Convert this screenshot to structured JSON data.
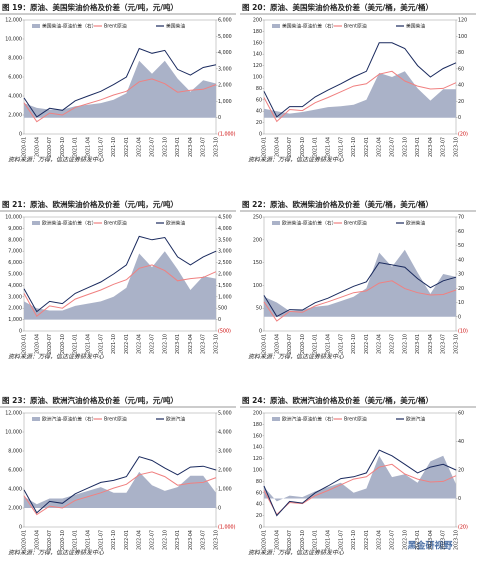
{
  "watermark": "黑金研视野",
  "chart_data": [
    {
      "type": "line",
      "title": "图 19：原油、美国柴油价格及价差（元/吨，元/吨）",
      "source": "资料来源：万得，信达证券研发中心",
      "categories": [
        "2020-01",
        "2020-04",
        "2020-07",
        "2020-10",
        "2021-01",
        "2021-04",
        "2021-07",
        "2021-10",
        "2022-01",
        "2022-04",
        "2022-07",
        "2022-10",
        "2023-01",
        "2023-04",
        "2023-07",
        "2023-10"
      ],
      "series": [
        {
          "name": "美国柴油-原油价差（右）",
          "color": "#aab2c8",
          "axis": "y2",
          "values": [
            900,
            600,
            500,
            500,
            700,
            800,
            900,
            1100,
            1500,
            3500,
            2700,
            3500,
            2400,
            1600,
            2300,
            2100
          ]
        },
        {
          "name": "Brent原油",
          "color": "#f08080",
          "values": [
            3300,
            1300,
            2200,
            2000,
            2800,
            3200,
            3600,
            4100,
            4500,
            5500,
            5800,
            5300,
            4400,
            4600,
            4700,
            5200
          ]
        },
        {
          "name": "美国柴油",
          "color": "#1a2a5e",
          "values": [
            3800,
            1800,
            2700,
            2500,
            3500,
            4000,
            4500,
            5200,
            6000,
            9000,
            8500,
            8800,
            6800,
            6200,
            7000,
            7300
          ]
        }
      ],
      "ylim": [
        0,
        12000
      ],
      "yticks": [
        0,
        {
          "value": 2000,
          "label": "2,000"
        },
        {
          "value": 4000,
          "label": "4,000"
        },
        {
          "value": 6000,
          "label": "6,000"
        },
        {
          "value": 8000,
          "label": "8,000"
        },
        {
          "value": 10000,
          "label": "10,000"
        },
        {
          "value": 12000,
          "label": "12,000"
        }
      ],
      "y2lim": [
        -1000,
        6000
      ],
      "y2ticks": [
        {
          "value": -1000,
          "label": "(1,000)"
        },
        0,
        {
          "value": 1000,
          "label": "1,000"
        },
        {
          "value": 2000,
          "label": "2,000"
        },
        {
          "value": 3000,
          "label": "3,000"
        },
        {
          "value": 4000,
          "label": "4,000"
        },
        {
          "value": 5000,
          "label": "5,000"
        },
        {
          "value": 6000,
          "label": "6,000"
        }
      ]
    },
    {
      "type": "line",
      "title": "图 20：原油、美国柴油价格及价差（美元/桶，美元/桶）",
      "source": "资料来源：万得，信达证券研发中心",
      "categories": [
        "2020-01",
        "2020-04",
        "2020-07",
        "2020-10",
        "2021-01",
        "2021-04",
        "2021-07",
        "2021-10",
        "2022-01",
        "2022-04",
        "2022-07",
        "2022-10",
        "2023-01",
        "2023-04",
        "2023-07",
        "2023-10"
      ],
      "series": [
        {
          "name": "美国柴油-原油价差（右）",
          "color": "#aab2c8",
          "axis": "y2",
          "values": [
            11,
            8,
            5,
            7,
            10,
            13,
            14,
            16,
            22,
            55,
            50,
            57,
            36,
            21,
            35,
            35
          ]
        },
        {
          "name": "Brent原油",
          "color": "#f08080",
          "values": [
            64,
            22,
            43,
            41,
            55,
            64,
            74,
            84,
            88,
            105,
            110,
            93,
            84,
            79,
            80,
            90
          ]
        },
        {
          "name": "美国柴油",
          "color": "#1a2a5e",
          "values": [
            75,
            30,
            48,
            48,
            65,
            77,
            88,
            100,
            110,
            160,
            160,
            150,
            120,
            100,
            115,
            125
          ]
        }
      ],
      "ylim": [
        0,
        200
      ],
      "yticks": [
        0,
        20,
        40,
        60,
        80,
        100,
        120,
        140,
        160,
        180,
        200
      ],
      "y2lim": [
        -20,
        120
      ],
      "y2ticks": [
        {
          "value": -20,
          "label": "(20)"
        },
        0,
        20,
        40,
        60,
        80,
        100,
        120
      ]
    },
    {
      "type": "line",
      "title": "图 21：原油、欧洲柴油价格及价差（元/吨，元/吨）",
      "source": "资料来源：万得，信达证券研发中心",
      "categories": [
        "2020-01",
        "2020-04",
        "2020-07",
        "2020-10",
        "2021-01",
        "2021-04",
        "2021-07",
        "2021-10",
        "2022-01",
        "2022-04",
        "2022-07",
        "2022-10",
        "2023-01",
        "2023-04",
        "2023-07",
        "2023-10"
      ],
      "series": [
        {
          "name": "欧洲柴油-原油价差（右）",
          "color": "#aab2c8",
          "axis": "y2",
          "values": [
            800,
            500,
            400,
            400,
            600,
            700,
            800,
            1000,
            1400,
            2900,
            2300,
            3000,
            2200,
            1300,
            1900,
            1800
          ]
        },
        {
          "name": "Brent原油",
          "color": "#f08080",
          "values": [
            3300,
            1300,
            2200,
            2000,
            2800,
            3200,
            3600,
            4100,
            4500,
            5500,
            5800,
            5300,
            4400,
            4600,
            4700,
            5200
          ]
        },
        {
          "name": "欧洲柴油",
          "color": "#1a2a5e",
          "values": [
            3700,
            1700,
            2600,
            2400,
            3300,
            3800,
            4300,
            5000,
            5800,
            8300,
            8000,
            8200,
            6500,
            5800,
            6500,
            7000
          ]
        }
      ],
      "ylim": [
        0,
        10000
      ],
      "yticks": [
        0,
        {
          "value": 1000,
          "label": "1,000"
        },
        {
          "value": 2000,
          "label": "2,000"
        },
        {
          "value": 3000,
          "label": "3,000"
        },
        {
          "value": 4000,
          "label": "4,000"
        },
        {
          "value": 5000,
          "label": "5,000"
        },
        {
          "value": 6000,
          "label": "6,000"
        },
        {
          "value": 7000,
          "label": "7,000"
        },
        {
          "value": 8000,
          "label": "8,000"
        },
        {
          "value": 9000,
          "label": "9,000"
        },
        {
          "value": 10000,
          "label": "10,000"
        }
      ],
      "y2lim": [
        -500,
        4500
      ],
      "y2ticks": [
        {
          "value": -500,
          "label": "(500)"
        },
        0,
        500,
        {
          "value": 1000,
          "label": "1,000"
        },
        {
          "value": 1500,
          "label": "1,500"
        },
        {
          "value": 2000,
          "label": "2,000"
        },
        {
          "value": 2500,
          "label": "2,500"
        },
        {
          "value": 3000,
          "label": "3,000"
        },
        {
          "value": 3500,
          "label": "3,500"
        },
        {
          "value": 4000,
          "label": "4,000"
        },
        {
          "value": 4500,
          "label": "4,500"
        }
      ]
    },
    {
      "type": "line",
      "title": "图 22：原油、欧洲柴油价格及价差（美元/桶，美元/桶）",
      "source": "资料来源：万得，信达证券研发中心",
      "categories": [
        "2020-01",
        "2020-04",
        "2020-07",
        "2020-10",
        "2021-01",
        "2021-04",
        "2021-07",
        "2021-10",
        "2022-01",
        "2022-04",
        "2022-07",
        "2022-10",
        "2023-01",
        "2023-04",
        "2023-07",
        "2023-10"
      ],
      "series": [
        {
          "name": "欧洲柴油-原油价差（右）",
          "color": "#aab2c8",
          "axis": "y2",
          "values": [
            14,
            10,
            4,
            5,
            7,
            8,
            11,
            14,
            20,
            45,
            35,
            47,
            31,
            16,
            30,
            28
          ]
        },
        {
          "name": "Brent原油",
          "color": "#f08080",
          "values": [
            64,
            22,
            43,
            41,
            55,
            64,
            74,
            84,
            88,
            105,
            110,
            93,
            84,
            79,
            80,
            90
          ]
        },
        {
          "name": "欧洲柴油",
          "color": "#1a2a5e",
          "values": [
            78,
            32,
            47,
            46,
            62,
            72,
            85,
            98,
            108,
            150,
            145,
            140,
            115,
            95,
            110,
            118
          ]
        }
      ],
      "ylim": [
        0,
        250
      ],
      "yticks": [
        0,
        50,
        100,
        150,
        200,
        250
      ],
      "y2lim": [
        -10,
        70
      ],
      "y2ticks": [
        {
          "value": -10,
          "label": "(10)"
        },
        0,
        10,
        20,
        30,
        40,
        50,
        60,
        70
      ]
    },
    {
      "type": "line",
      "title": "图 23：原油、欧洲汽油价格及价差（元/吨，元/吨）",
      "source": "资料来源：万得，信达证券研发中心",
      "categories": [
        "2020-01",
        "2020-04",
        "2020-07",
        "2020-10",
        "2021-01",
        "2021-04",
        "2021-07",
        "2021-10",
        "2022-01",
        "2022-04",
        "2022-07",
        "2022-10",
        "2023-01",
        "2023-04",
        "2023-07",
        "2023-10"
      ],
      "series": [
        {
          "name": "欧洲汽油-原油价差（右）",
          "color": "#aab2c8",
          "axis": "y2",
          "values": [
            600,
            200,
            500,
            500,
            700,
            900,
            1100,
            800,
            800,
            1900,
            1200,
            900,
            1100,
            1700,
            1700,
            800
          ]
        },
        {
          "name": "Brent原油",
          "color": "#f08080",
          "values": [
            3300,
            1300,
            2200,
            2000,
            2800,
            3200,
            3600,
            4100,
            4500,
            5500,
            5800,
            5300,
            4400,
            4600,
            4700,
            5200
          ]
        },
        {
          "name": "欧洲汽油",
          "color": "#1a2a5e",
          "values": [
            3900,
            1500,
            2700,
            2500,
            3500,
            4100,
            4700,
            4900,
            5300,
            7400,
            7000,
            6200,
            5500,
            6300,
            6400,
            6000
          ]
        }
      ],
      "ylim": [
        0,
        12000
      ],
      "yticks": [
        0,
        {
          "value": 2000,
          "label": "2,000"
        },
        {
          "value": 4000,
          "label": "4,000"
        },
        {
          "value": 6000,
          "label": "6,000"
        },
        {
          "value": 8000,
          "label": "8,000"
        },
        {
          "value": 10000,
          "label": "10,000"
        },
        {
          "value": 12000,
          "label": "12,000"
        }
      ],
      "y2lim": [
        -1000,
        5000
      ],
      "y2ticks": [
        {
          "value": -1000,
          "label": "(1,000)"
        },
        0,
        {
          "value": 1000,
          "label": "1,000"
        },
        {
          "value": 2000,
          "label": "2,000"
        },
        {
          "value": 3000,
          "label": "3,000"
        },
        {
          "value": 4000,
          "label": "4,000"
        },
        {
          "value": 5000,
          "label": "5,000"
        }
      ]
    },
    {
      "type": "line",
      "title": "图 24：原油、欧洲汽油价格及价差（美元/桶，美元/桶）",
      "source": "资料来源：万得，信达证券研发中心",
      "categories": [
        "2020-01",
        "2020-04",
        "2020-07",
        "2020-10",
        "2021-01",
        "2021-04",
        "2021-07",
        "2021-10",
        "2022-01",
        "2022-04",
        "2022-07",
        "2022-10",
        "2023-01",
        "2023-04",
        "2023-07",
        "2023-10"
      ],
      "series": [
        {
          "name": "欧洲汽油-原油价差（右）",
          "color": "#aab2c8",
          "axis": "y2",
          "values": [
            8,
            -2,
            2,
            1,
            5,
            8,
            11,
            4,
            7,
            30,
            15,
            17,
            11,
            26,
            30,
            10
          ]
        },
        {
          "name": "Brent原油",
          "color": "#f08080",
          "values": [
            64,
            22,
            43,
            41,
            55,
            64,
            74,
            84,
            88,
            105,
            110,
            93,
            84,
            79,
            80,
            90
          ]
        },
        {
          "name": "欧洲汽油",
          "color": "#1a2a5e",
          "values": [
            72,
            20,
            45,
            42,
            60,
            72,
            85,
            88,
            95,
            135,
            125,
            110,
            95,
            105,
            110,
            100
          ]
        }
      ],
      "ylim": [
        0,
        200
      ],
      "yticks": [
        0,
        20,
        40,
        60,
        80,
        100,
        120,
        140,
        160,
        180,
        200
      ],
      "y2lim": [
        -20,
        60
      ],
      "y2ticks": [
        {
          "value": -20,
          "label": "(20)"
        },
        0,
        20,
        40,
        60
      ]
    }
  ]
}
